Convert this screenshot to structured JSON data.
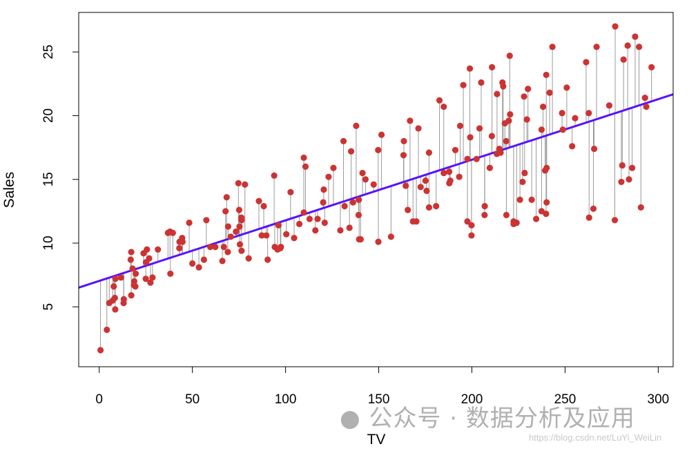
{
  "chart_data": {
    "type": "scatter",
    "title": "",
    "xlabel": "TV",
    "ylabel": "Sales",
    "xlim": [
      -11,
      308
    ],
    "ylim": [
      0.3,
      28.1
    ],
    "xticks": [
      0,
      50,
      100,
      150,
      200,
      250,
      300
    ],
    "yticks": [
      5,
      10,
      15,
      20,
      25
    ],
    "grid": false,
    "point_color": "#CC3333",
    "line_color": "#5511FF",
    "residual_color": "#999999",
    "fit": {
      "intercept": 7.0326,
      "slope": 0.04754
    },
    "points": [
      [
        230.1,
        22.1
      ],
      [
        44.5,
        10.4
      ],
      [
        17.2,
        9.3
      ],
      [
        151.5,
        18.5
      ],
      [
        180.8,
        12.9
      ],
      [
        8.7,
        7.2
      ],
      [
        57.5,
        11.8
      ],
      [
        120.2,
        13.2
      ],
      [
        8.6,
        4.8
      ],
      [
        199.8,
        10.6
      ],
      [
        66.1,
        8.6
      ],
      [
        214.7,
        17.4
      ],
      [
        23.8,
        9.2
      ],
      [
        97.5,
        9.7
      ],
      [
        204.1,
        19
      ],
      [
        195.4,
        22.4
      ],
      [
        67.8,
        12.5
      ],
      [
        281.4,
        24.4
      ],
      [
        69.2,
        11.3
      ],
      [
        147.3,
        14.6
      ],
      [
        218.4,
        18
      ],
      [
        237.4,
        12.5
      ],
      [
        13.2,
        5.6
      ],
      [
        228.3,
        15.5
      ],
      [
        62.3,
        9.7
      ],
      [
        262.9,
        12
      ],
      [
        142.9,
        15
      ],
      [
        240.1,
        15.9
      ],
      [
        248.8,
        18.9
      ],
      [
        70.6,
        10.5
      ],
      [
        292.9,
        21.4
      ],
      [
        112.9,
        11.9
      ],
      [
        97.2,
        9.6
      ],
      [
        265.6,
        17.4
      ],
      [
        95.7,
        9.5
      ],
      [
        290.7,
        12.8
      ],
      [
        266.9,
        25.4
      ],
      [
        74.7,
        14.7
      ],
      [
        43.1,
        10.1
      ],
      [
        228,
        21.5
      ],
      [
        202.5,
        16.6
      ],
      [
        177,
        17.1
      ],
      [
        293.6,
        20.7
      ],
      [
        206.9,
        12.9
      ],
      [
        25.1,
        8.5
      ],
      [
        175.1,
        14.9
      ],
      [
        89.7,
        10.6
      ],
      [
        239.9,
        23.2
      ],
      [
        227.2,
        14.8
      ],
      [
        66.9,
        9.7
      ],
      [
        199.8,
        11.4
      ],
      [
        100.4,
        10.7
      ],
      [
        216.4,
        22.6
      ],
      [
        182.6,
        21.2
      ],
      [
        262.7,
        20.2
      ],
      [
        198.9,
        23.7
      ],
      [
        7.3,
        5.5
      ],
      [
        136.2,
        13.2
      ],
      [
        210.8,
        23.8
      ],
      [
        210.7,
        18.4
      ],
      [
        53.5,
        8.1
      ],
      [
        261.3,
        24.2
      ],
      [
        239.3,
        15.7
      ],
      [
        102.7,
        14
      ],
      [
        131.1,
        18
      ],
      [
        69,
        9.3
      ],
      [
        31.5,
        9.5
      ],
      [
        139.3,
        13.4
      ],
      [
        237.4,
        18.9
      ],
      [
        216.8,
        22.3
      ],
      [
        199.1,
        18.3
      ],
      [
        109.8,
        12.4
      ],
      [
        26.8,
        8.8
      ],
      [
        129.4,
        11
      ],
      [
        213.4,
        17
      ],
      [
        16.9,
        8.7
      ],
      [
        27.5,
        6.9
      ],
      [
        120.5,
        14.2
      ],
      [
        5.4,
        5.3
      ],
      [
        116,
        11
      ],
      [
        76.4,
        11.8
      ],
      [
        239.8,
        12.3
      ],
      [
        75.3,
        11.3
      ],
      [
        68.4,
        13.6
      ],
      [
        213.5,
        21.7
      ],
      [
        193.2,
        15.2
      ],
      [
        76.3,
        12
      ],
      [
        110.7,
        16
      ],
      [
        88.3,
        12.9
      ],
      [
        109.8,
        16.7
      ],
      [
        134.3,
        11.2
      ],
      [
        28.6,
        7.3
      ],
      [
        217.7,
        19.4
      ],
      [
        250.9,
        22.2
      ],
      [
        107.4,
        11.5
      ],
      [
        163.3,
        16.9
      ],
      [
        197.6,
        11.7
      ],
      [
        184.9,
        15.5
      ],
      [
        289.7,
        25.4
      ],
      [
        135.2,
        17.2
      ],
      [
        222.4,
        11.7
      ],
      [
        296.4,
        23.8
      ],
      [
        280.2,
        14.8
      ],
      [
        187.9,
        14.7
      ],
      [
        238.2,
        20.7
      ],
      [
        137.9,
        19.2
      ],
      [
        25,
        7.2
      ],
      [
        90.4,
        8.7
      ],
      [
        13.1,
        5.3
      ],
      [
        255.4,
        19.8
      ],
      [
        225.8,
        13.4
      ],
      [
        241.7,
        21.8
      ],
      [
        175.7,
        14.1
      ],
      [
        209.6,
        15.9
      ],
      [
        78.2,
        14.6
      ],
      [
        75.1,
        12.6
      ],
      [
        139.2,
        12.2
      ],
      [
        76.4,
        9.4
      ],
      [
        125.7,
        15.9
      ],
      [
        19.4,
        6.6
      ],
      [
        141.3,
        15.5
      ],
      [
        18.8,
        7
      ],
      [
        224,
        11.6
      ],
      [
        123.1,
        15.2
      ],
      [
        229.5,
        19.7
      ],
      [
        87.2,
        10.6
      ],
      [
        7.8,
        6.6
      ],
      [
        80.2,
        8.8
      ],
      [
        220.3,
        24.7
      ],
      [
        59.6,
        9.7
      ],
      [
        0.7,
        1.6
      ],
      [
        265.2,
        12.7
      ],
      [
        8.4,
        5.7
      ],
      [
        219.8,
        19.6
      ],
      [
        36.9,
        10.8
      ],
      [
        48.3,
        11.6
      ],
      [
        25.6,
        9.5
      ],
      [
        273.7,
        20.8
      ],
      [
        43,
        9.6
      ],
      [
        184.9,
        20.7
      ],
      [
        73.4,
        10.9
      ],
      [
        193.7,
        19.2
      ],
      [
        220.5,
        20.1
      ],
      [
        104.6,
        10.4
      ],
      [
        96.2,
        11.4
      ],
      [
        140.3,
        10.3
      ],
      [
        240.1,
        13.2
      ],
      [
        243.2,
        25.4
      ],
      [
        38,
        10.9
      ],
      [
        44.7,
        10.1
      ],
      [
        280.7,
        16.1
      ],
      [
        121,
        11.6
      ],
      [
        197.6,
        16.6
      ],
      [
        171.3,
        19
      ],
      [
        187.8,
        15.6
      ],
      [
        4.1,
        3.2
      ],
      [
        93.9,
        15.3
      ],
      [
        149.8,
        10.1
      ],
      [
        11.7,
        7.3
      ],
      [
        131.7,
        12.9
      ],
      [
        172.5,
        14.4
      ],
      [
        85.7,
        13.3
      ],
      [
        188.4,
        14.9
      ],
      [
        163.5,
        18
      ],
      [
        117.2,
        11.9
      ],
      [
        234.5,
        11.9
      ],
      [
        17.9,
        8
      ],
      [
        206.8,
        12.2
      ],
      [
        215.4,
        17.1
      ],
      [
        284.3,
        15
      ],
      [
        50,
        8.4
      ],
      [
        164.5,
        14.5
      ],
      [
        19.6,
        7.6
      ],
      [
        168.4,
        11.7
      ],
      [
        222.4,
        11.5
      ],
      [
        276.9,
        27
      ],
      [
        248.4,
        20.2
      ],
      [
        170.2,
        11.7
      ],
      [
        276.7,
        11.8
      ],
      [
        165.6,
        12.6
      ],
      [
        156.6,
        10.5
      ],
      [
        218.5,
        12.2
      ],
      [
        56.2,
        8.7
      ],
      [
        287.6,
        26.2
      ],
      [
        253.8,
        17.6
      ],
      [
        205,
        22.6
      ],
      [
        139.5,
        10.3
      ],
      [
        191.1,
        17.3
      ],
      [
        286,
        15.9
      ],
      [
        18.7,
        6.7
      ],
      [
        39.5,
        10.8
      ],
      [
        75.5,
        9.9
      ],
      [
        17.2,
        5.9
      ],
      [
        166.8,
        19.6
      ],
      [
        149.7,
        17.3
      ],
      [
        38.2,
        7.6
      ],
      [
        94.2,
        9.7
      ],
      [
        177,
        12.8
      ],
      [
        283.6,
        25.5
      ],
      [
        232.1,
        13.4
      ]
    ]
  },
  "watermark": {
    "text": "公众号 · 数据分析及应用",
    "url": "https://blog.csdn.net/LuYi_WeiLin"
  }
}
